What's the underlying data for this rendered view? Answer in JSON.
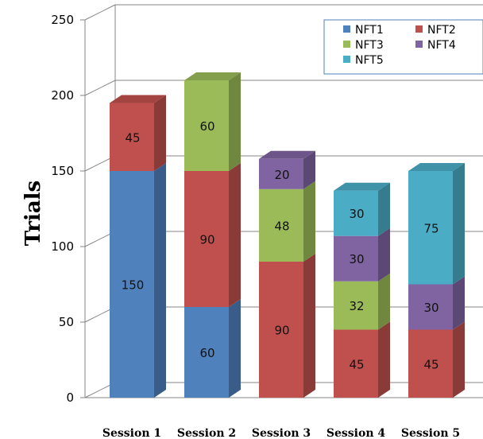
{
  "chart_data": {
    "type": "bar",
    "stacked": true,
    "three_d": true,
    "title": "",
    "xlabel": "",
    "ylabel": "Trials",
    "ylim": [
      0,
      250
    ],
    "yticks": [
      "0",
      "50",
      "100",
      "150",
      "200",
      "250"
    ],
    "categories": [
      "Session 1",
      "Session 2",
      "Session 3",
      "Session 4",
      "Session 5"
    ],
    "grid": true,
    "legend_position": "top-right",
    "series": [
      {
        "name": "NFT1",
        "color": "#4f81bd",
        "values": [
          150,
          60,
          0,
          0,
          0
        ]
      },
      {
        "name": "NFT2",
        "color": "#c0504d",
        "values": [
          45,
          90,
          90,
          45,
          45
        ]
      },
      {
        "name": "NFT3",
        "color": "#9bbb59",
        "values": [
          0,
          60,
          48,
          32,
          0
        ]
      },
      {
        "name": "NFT4",
        "color": "#8064a2",
        "values": [
          0,
          0,
          20,
          30,
          30
        ]
      },
      {
        "name": "NFT5",
        "color": "#4bacc6",
        "values": [
          0,
          0,
          0,
          30,
          75
        ]
      }
    ]
  }
}
